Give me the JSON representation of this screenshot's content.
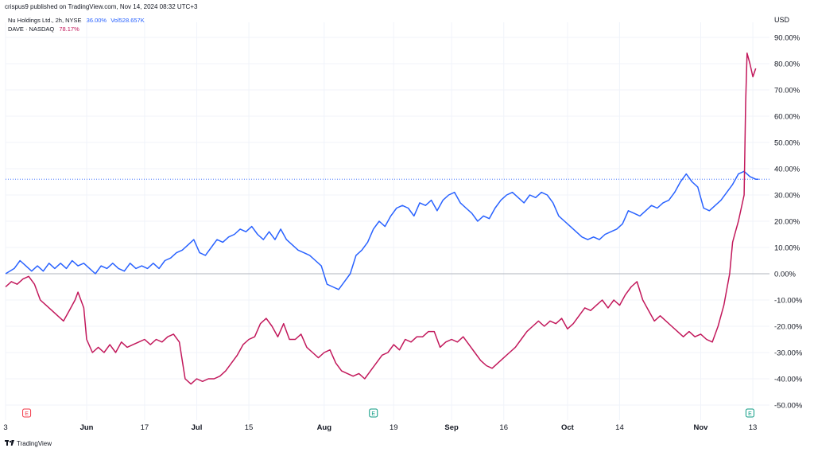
{
  "header": {
    "published_line": "crispus9 published on TradingView.com, Nov 14, 2024 08:32 UTC+3"
  },
  "legend": {
    "nu_name": "Nu Holdings Ltd., 2h, NYSE",
    "nu_value": "36.00%",
    "nu_vol": "Vol528.657K",
    "dave_name": "DAVE · NASDAQ",
    "dave_value": "78.17%"
  },
  "axis": {
    "currency": "USD"
  },
  "footer": {
    "brand": "TradingView"
  },
  "colors": {
    "nu": "#2962ff",
    "dave": "#c2185b",
    "grid": "#f0f3fa",
    "zero_line": "#b2b5be",
    "earnings_red": "#f23645",
    "earnings_green": "#089981"
  },
  "chart_data": {
    "type": "line",
    "ylabel": "",
    "ylim": [
      -55,
      95
    ],
    "yticks": [
      90,
      80,
      70,
      60,
      50,
      40,
      30,
      20,
      10,
      0,
      -10,
      -20,
      -30,
      -40,
      -50
    ],
    "ytick_labels": [
      "90.00%",
      "80.00%",
      "70.00%",
      "60.00%",
      "50.00%",
      "40.00%",
      "30.00%",
      "20.00%",
      "10.00%",
      "0.00%",
      "-10.00%",
      "-20.00%",
      "-30.00%",
      "-40.00%",
      "-50.00%"
    ],
    "xticks": [
      {
        "label": "3",
        "t": 0
      },
      {
        "label": "Jun",
        "t": 28
      },
      {
        "label": "17",
        "t": 48
      },
      {
        "label": "Jul",
        "t": 66
      },
      {
        "label": "15",
        "t": 84
      },
      {
        "label": "Aug",
        "t": 110
      },
      {
        "label": "19",
        "t": 134
      },
      {
        "label": "Sep",
        "t": 154
      },
      {
        "label": "16",
        "t": 172
      },
      {
        "label": "Oct",
        "t": 194
      },
      {
        "label": "14",
        "t": 212
      },
      {
        "label": "Nov",
        "t": 240
      },
      {
        "label": "13",
        "t": 258
      }
    ],
    "t_range": [
      0,
      261
    ],
    "earnings_markers": [
      {
        "label": "E",
        "t": 4,
        "color": "red"
      },
      {
        "label": "E",
        "t": 127,
        "color": "green"
      },
      {
        "label": "E",
        "t": 257,
        "color": "green"
      }
    ],
    "series": [
      {
        "name": "Nu Holdings Ltd., 2h, NYSE",
        "color": "#2962ff",
        "last_value": 36.0,
        "points": [
          [
            0,
            0
          ],
          [
            3,
            2
          ],
          [
            5,
            5
          ],
          [
            7,
            3
          ],
          [
            9,
            1
          ],
          [
            11,
            3
          ],
          [
            13,
            1
          ],
          [
            15,
            4
          ],
          [
            17,
            2
          ],
          [
            19,
            4
          ],
          [
            21,
            2
          ],
          [
            23,
            5
          ],
          [
            25,
            3
          ],
          [
            27,
            4
          ],
          [
            29,
            2
          ],
          [
            31,
            0
          ],
          [
            33,
            3
          ],
          [
            35,
            2
          ],
          [
            37,
            4
          ],
          [
            39,
            2
          ],
          [
            41,
            1
          ],
          [
            43,
            4
          ],
          [
            45,
            2
          ],
          [
            47,
            3
          ],
          [
            49,
            2
          ],
          [
            51,
            4
          ],
          [
            53,
            2
          ],
          [
            55,
            5
          ],
          [
            57,
            6
          ],
          [
            59,
            8
          ],
          [
            61,
            9
          ],
          [
            63,
            11
          ],
          [
            65,
            13
          ],
          [
            67,
            8
          ],
          [
            69,
            7
          ],
          [
            71,
            10
          ],
          [
            73,
            13
          ],
          [
            75,
            12
          ],
          [
            77,
            14
          ],
          [
            79,
            15
          ],
          [
            81,
            17
          ],
          [
            83,
            16
          ],
          [
            85,
            18
          ],
          [
            87,
            15
          ],
          [
            89,
            13
          ],
          [
            91,
            16
          ],
          [
            93,
            13
          ],
          [
            95,
            17
          ],
          [
            97,
            13
          ],
          [
            99,
            11
          ],
          [
            101,
            9
          ],
          [
            103,
            8
          ],
          [
            105,
            7
          ],
          [
            107,
            5
          ],
          [
            109,
            3
          ],
          [
            111,
            -4
          ],
          [
            113,
            -5
          ],
          [
            115,
            -6
          ],
          [
            117,
            -3
          ],
          [
            119,
            0
          ],
          [
            121,
            7
          ],
          [
            123,
            9
          ],
          [
            125,
            12
          ],
          [
            127,
            17
          ],
          [
            129,
            20
          ],
          [
            131,
            18
          ],
          [
            133,
            22
          ],
          [
            135,
            25
          ],
          [
            137,
            26
          ],
          [
            139,
            25
          ],
          [
            141,
            22
          ],
          [
            143,
            27
          ],
          [
            145,
            26
          ],
          [
            147,
            28
          ],
          [
            149,
            24
          ],
          [
            151,
            28
          ],
          [
            153,
            30
          ],
          [
            155,
            31
          ],
          [
            157,
            27
          ],
          [
            159,
            25
          ],
          [
            161,
            23
          ],
          [
            163,
            20
          ],
          [
            165,
            22
          ],
          [
            167,
            21
          ],
          [
            169,
            25
          ],
          [
            171,
            28
          ],
          [
            173,
            30
          ],
          [
            175,
            31
          ],
          [
            177,
            29
          ],
          [
            179,
            27
          ],
          [
            181,
            30
          ],
          [
            183,
            29
          ],
          [
            185,
            31
          ],
          [
            187,
            30
          ],
          [
            189,
            27
          ],
          [
            191,
            22
          ],
          [
            193,
            20
          ],
          [
            195,
            18
          ],
          [
            197,
            16
          ],
          [
            199,
            14
          ],
          [
            201,
            13
          ],
          [
            203,
            14
          ],
          [
            205,
            13
          ],
          [
            207,
            15
          ],
          [
            209,
            16
          ],
          [
            211,
            17
          ],
          [
            213,
            19
          ],
          [
            215,
            24
          ],
          [
            217,
            23
          ],
          [
            219,
            22
          ],
          [
            221,
            24
          ],
          [
            223,
            26
          ],
          [
            225,
            25
          ],
          [
            227,
            27
          ],
          [
            229,
            28
          ],
          [
            231,
            31
          ],
          [
            233,
            35
          ],
          [
            235,
            38
          ],
          [
            237,
            35
          ],
          [
            239,
            33
          ],
          [
            241,
            25
          ],
          [
            243,
            24
          ],
          [
            245,
            26
          ],
          [
            247,
            28
          ],
          [
            249,
            31
          ],
          [
            251,
            34
          ],
          [
            253,
            38
          ],
          [
            255,
            39
          ],
          [
            257,
            37
          ],
          [
            259,
            36
          ],
          [
            260,
            36
          ]
        ]
      },
      {
        "name": "DAVE · NASDAQ",
        "color": "#c2185b",
        "last_value": 78.17,
        "points": [
          [
            0,
            -5
          ],
          [
            2,
            -3
          ],
          [
            4,
            -4
          ],
          [
            6,
            -2
          ],
          [
            8,
            -1
          ],
          [
            10,
            -4
          ],
          [
            12,
            -10
          ],
          [
            14,
            -12
          ],
          [
            16,
            -14
          ],
          [
            18,
            -16
          ],
          [
            20,
            -18
          ],
          [
            22,
            -14
          ],
          [
            24,
            -10
          ],
          [
            25,
            -7
          ],
          [
            27,
            -13
          ],
          [
            28,
            -25
          ],
          [
            30,
            -30
          ],
          [
            32,
            -28
          ],
          [
            34,
            -30
          ],
          [
            36,
            -27
          ],
          [
            38,
            -30
          ],
          [
            40,
            -26
          ],
          [
            42,
            -28
          ],
          [
            44,
            -27
          ],
          [
            46,
            -26
          ],
          [
            48,
            -25
          ],
          [
            50,
            -27
          ],
          [
            52,
            -25
          ],
          [
            54,
            -26
          ],
          [
            56,
            -24
          ],
          [
            58,
            -23
          ],
          [
            60,
            -26
          ],
          [
            62,
            -40
          ],
          [
            64,
            -42
          ],
          [
            66,
            -40
          ],
          [
            68,
            -41
          ],
          [
            70,
            -40
          ],
          [
            72,
            -40
          ],
          [
            74,
            -39
          ],
          [
            76,
            -37
          ],
          [
            78,
            -34
          ],
          [
            80,
            -31
          ],
          [
            82,
            -27
          ],
          [
            84,
            -25
          ],
          [
            86,
            -24
          ],
          [
            88,
            -19
          ],
          [
            90,
            -17
          ],
          [
            92,
            -20
          ],
          [
            94,
            -24
          ],
          [
            96,
            -19
          ],
          [
            98,
            -25
          ],
          [
            100,
            -25
          ],
          [
            102,
            -23
          ],
          [
            104,
            -28
          ],
          [
            106,
            -30
          ],
          [
            108,
            -32
          ],
          [
            110,
            -30
          ],
          [
            112,
            -29
          ],
          [
            114,
            -34
          ],
          [
            116,
            -37
          ],
          [
            118,
            -38
          ],
          [
            120,
            -39
          ],
          [
            122,
            -38
          ],
          [
            124,
            -40
          ],
          [
            126,
            -37
          ],
          [
            128,
            -34
          ],
          [
            130,
            -31
          ],
          [
            132,
            -30
          ],
          [
            134,
            -27
          ],
          [
            136,
            -29
          ],
          [
            138,
            -25
          ],
          [
            140,
            -26
          ],
          [
            142,
            -24
          ],
          [
            144,
            -24
          ],
          [
            146,
            -22
          ],
          [
            148,
            -22
          ],
          [
            150,
            -28
          ],
          [
            152,
            -26
          ],
          [
            154,
            -25
          ],
          [
            156,
            -26
          ],
          [
            158,
            -24
          ],
          [
            160,
            -27
          ],
          [
            162,
            -30
          ],
          [
            164,
            -33
          ],
          [
            166,
            -35
          ],
          [
            168,
            -36
          ],
          [
            170,
            -34
          ],
          [
            172,
            -32
          ],
          [
            174,
            -30
          ],
          [
            176,
            -28
          ],
          [
            178,
            -25
          ],
          [
            180,
            -22
          ],
          [
            182,
            -20
          ],
          [
            184,
            -18
          ],
          [
            186,
            -20
          ],
          [
            188,
            -18
          ],
          [
            190,
            -19
          ],
          [
            192,
            -17
          ],
          [
            194,
            -21
          ],
          [
            196,
            -19
          ],
          [
            198,
            -16
          ],
          [
            200,
            -13
          ],
          [
            202,
            -14
          ],
          [
            204,
            -12
          ],
          [
            206,
            -10
          ],
          [
            208,
            -13
          ],
          [
            210,
            -10
          ],
          [
            212,
            -12
          ],
          [
            214,
            -8
          ],
          [
            216,
            -5
          ],
          [
            218,
            -3
          ],
          [
            220,
            -10
          ],
          [
            222,
            -14
          ],
          [
            224,
            -18
          ],
          [
            226,
            -16
          ],
          [
            228,
            -18
          ],
          [
            230,
            -20
          ],
          [
            232,
            -22
          ],
          [
            234,
            -24
          ],
          [
            236,
            -22
          ],
          [
            238,
            -24
          ],
          [
            240,
            -23
          ],
          [
            242,
            -25
          ],
          [
            244,
            -26
          ],
          [
            246,
            -20
          ],
          [
            248,
            -12
          ],
          [
            250,
            0
          ],
          [
            251,
            12
          ],
          [
            252,
            16
          ],
          [
            253,
            20
          ],
          [
            254,
            25
          ],
          [
            255,
            30
          ],
          [
            255.5,
            65
          ],
          [
            256,
            84
          ],
          [
            257,
            80
          ],
          [
            258,
            75
          ],
          [
            259,
            78.17
          ]
        ]
      }
    ]
  }
}
